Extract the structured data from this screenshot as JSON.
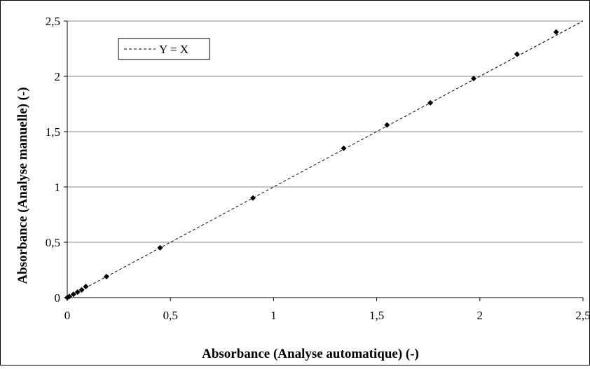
{
  "chart_data": {
    "type": "scatter",
    "title": "",
    "xlabel": "Absorbance (Analyse automatique) (-)",
    "ylabel": "Absorbance (Analyse manuelle) (-)",
    "xlim": [
      0,
      2.5
    ],
    "ylim": [
      0,
      2.5
    ],
    "x_ticks": [
      0,
      0.5,
      1,
      1.5,
      2,
      2.5
    ],
    "y_ticks": [
      0,
      0.5,
      1,
      1.5,
      2,
      2.5
    ],
    "x_tick_labels": [
      "0",
      "0,5",
      "1",
      "1,5",
      "2",
      "2,5"
    ],
    "y_tick_labels": [
      "0",
      "0,5",
      "1",
      "1,5",
      "2",
      "2,5"
    ],
    "grid": "horizontal",
    "legend_position": "top-left",
    "series": [
      {
        "kind": "points",
        "marker": "diamond",
        "color": "#000000",
        "x": [
          0,
          0.01,
          0.03,
          0.05,
          0.07,
          0.09,
          0.19,
          0.45,
          0.9,
          1.34,
          1.55,
          1.76,
          1.97,
          2.18,
          2.37
        ],
        "y": [
          0,
          0.01,
          0.03,
          0.05,
          0.07,
          0.1,
          0.19,
          0.45,
          0.9,
          1.35,
          1.56,
          1.76,
          1.98,
          2.2,
          2.4
        ]
      },
      {
        "kind": "line",
        "name": "Y = X",
        "style": "dashed",
        "color": "#000000",
        "x": [
          0,
          2.5
        ],
        "y": [
          0,
          2.5
        ]
      }
    ]
  }
}
